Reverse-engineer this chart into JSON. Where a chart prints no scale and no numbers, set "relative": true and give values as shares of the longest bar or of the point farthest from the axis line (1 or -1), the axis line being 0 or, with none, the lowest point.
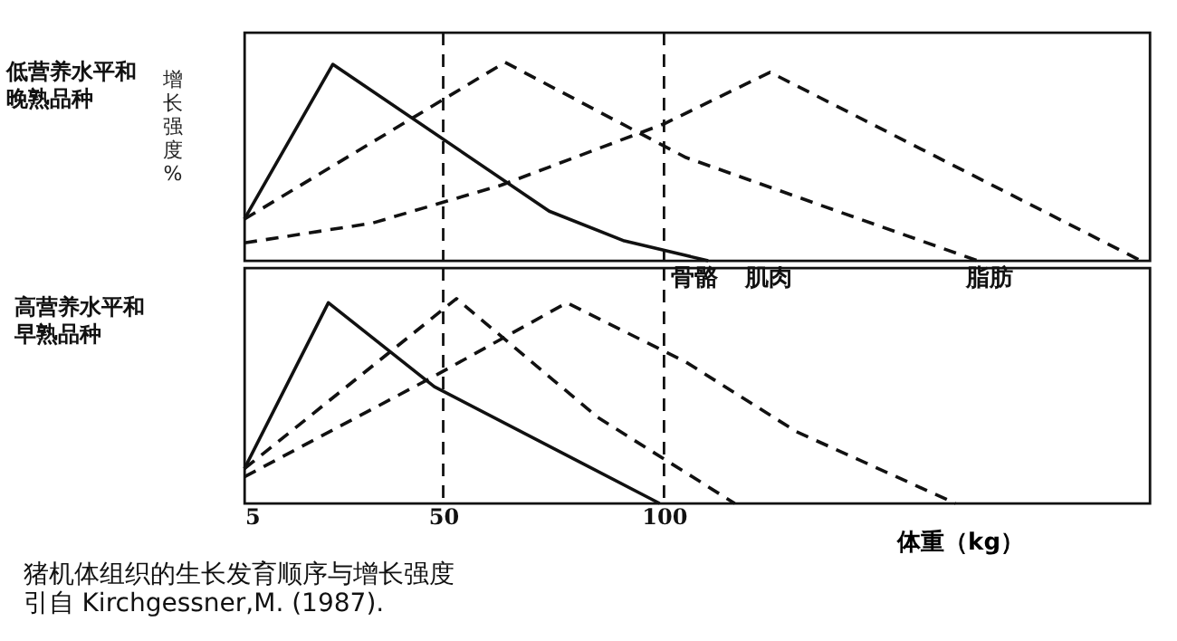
{
  "chart_data": [
    {
      "type": "line",
      "title": "低营养水平和晚熟品种",
      "ylabel": "增长强度%",
      "relative": true,
      "xlim": [
        5,
        210
      ],
      "tick_labels": false,
      "ref_lines": [
        {
          "axis": "x",
          "value": 50,
          "line_style": "dashed"
        },
        {
          "axis": "x",
          "value": 100,
          "line_style": "dashed"
        }
      ],
      "series": [
        {
          "color": "#111111",
          "line_style": "solid",
          "x": [
            5,
            25,
            74,
            91,
            110
          ],
          "values": [
            0.21,
            0.99,
            0.25,
            0.1,
            0
          ]
        },
        {
          "color": "#111111",
          "line_style": "dashed",
          "x": [
            5,
            64,
            105,
            171
          ],
          "values": [
            0.21,
            1.0,
            0.52,
            0
          ]
        },
        {
          "color": "#111111",
          "line_style": "dashed",
          "x": [
            5,
            34,
            63,
            100,
            124,
            208
          ],
          "values": [
            0.09,
            0.19,
            0.38,
            0.69,
            0.95,
            0
          ]
        }
      ]
    },
    {
      "type": "line",
      "title": "高营养水平和早熟品种",
      "xlabel": "体重（kg）",
      "relative": true,
      "xlim": [
        5,
        210
      ],
      "xticks": [
        5,
        50,
        100
      ],
      "tick_labels": "x",
      "ref_lines": [
        {
          "axis": "x",
          "value": 50,
          "line_style": "dashed"
        },
        {
          "axis": "x",
          "value": 100,
          "line_style": "dashed"
        }
      ],
      "annotations": [
        "猪机体组织的生长发育顺序与增长强度",
        "引自 Kirchgessner,M. (1987)."
      ],
      "series": [
        {
          "name": "骨骼",
          "color": "#111111",
          "line_style": "solid",
          "x": [
            5,
            24,
            48,
            99
          ],
          "values": [
            0.17,
            0.98,
            0.57,
            0
          ]
        },
        {
          "name": "肌肉",
          "color": "#111111",
          "line_style": "dashed",
          "x": [
            5,
            53,
            85,
            116
          ],
          "values": [
            0.17,
            1.0,
            0.42,
            0
          ]
        },
        {
          "name": "脂肪",
          "color": "#111111",
          "line_style": "dashed",
          "x": [
            5,
            47,
            78,
            105,
            130,
            166
          ],
          "values": [
            0.13,
            0.61,
            0.98,
            0.69,
            0.35,
            0
          ]
        }
      ]
    }
  ]
}
